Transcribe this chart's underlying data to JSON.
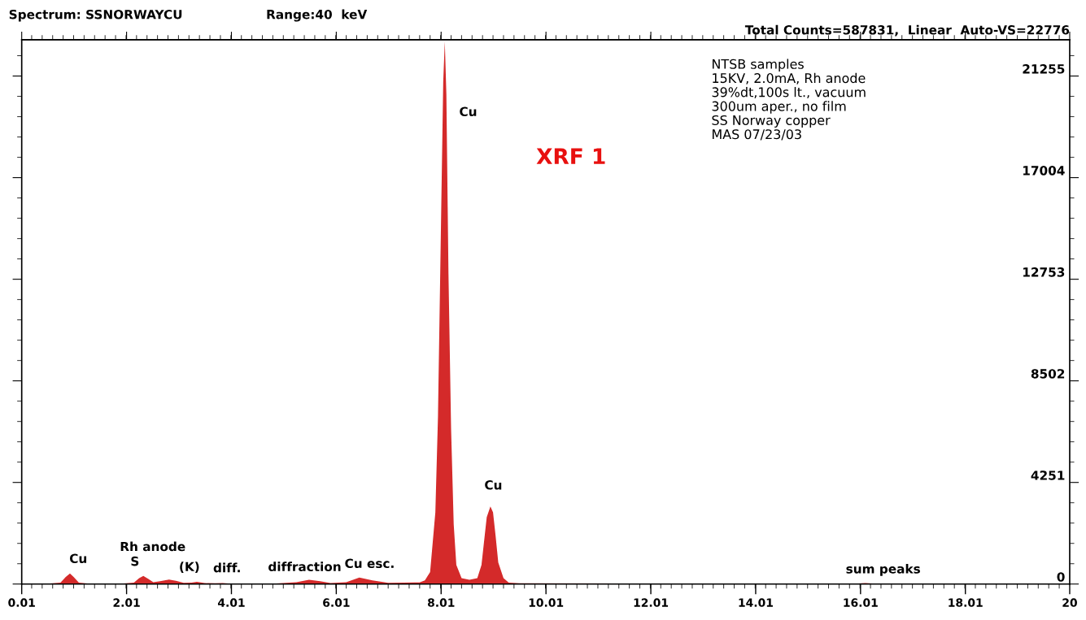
{
  "chart_data": {
    "type": "area",
    "title": "Spectrum: SSNORWAYCU",
    "subtitle": "Range:40  keV",
    "x": [
      0.01,
      0.5,
      0.75,
      0.85,
      0.93,
      1.0,
      1.1,
      1.3,
      1.9,
      2.15,
      2.25,
      2.33,
      2.42,
      2.52,
      2.65,
      2.82,
      2.95,
      3.1,
      3.25,
      3.35,
      3.5,
      3.7,
      3.84,
      4.0,
      4.8,
      5.25,
      5.49,
      5.7,
      5.9,
      6.2,
      6.45,
      6.7,
      7.0,
      7.3,
      7.6,
      7.7,
      7.8,
      7.9,
      7.95,
      8.0,
      8.05,
      8.08,
      8.11,
      8.15,
      8.2,
      8.25,
      8.3,
      8.4,
      8.55,
      8.7,
      8.78,
      8.83,
      8.88,
      8.95,
      9.0,
      9.05,
      9.1,
      9.2,
      9.3,
      9.5,
      12.0,
      15.9,
      16.1,
      16.3,
      20.0
    ],
    "series": [
      {
        "color": "#d42a2a",
        "values": [
          0,
          20,
          60,
          300,
          440,
          300,
          60,
          20,
          20,
          60,
          250,
          340,
          220,
          80,
          120,
          190,
          140,
          50,
          60,
          90,
          40,
          30,
          40,
          20,
          20,
          80,
          180,
          120,
          40,
          80,
          270,
          150,
          50,
          60,
          70,
          150,
          500,
          3000,
          7000,
          14000,
          21000,
          22700,
          20500,
          13000,
          6500,
          2500,
          800,
          250,
          180,
          250,
          800,
          1800,
          2800,
          3250,
          3000,
          2000,
          900,
          250,
          60,
          30,
          20,
          20,
          40,
          20,
          10
        ]
      }
    ],
    "xlim": [
      0.01,
      20
    ],
    "xticks": [
      0.01,
      2.01,
      4.01,
      6.01,
      8.01,
      10.01,
      12.01,
      14.01,
      16.01,
      18.01,
      20
    ],
    "ylim": [
      0,
      22776
    ],
    "yticks": [
      0,
      4251,
      8502,
      12753,
      17004,
      21255
    ],
    "grid": false,
    "legend": false,
    "annotations": [
      "Cu",
      "Rh anode",
      "S",
      "(K)",
      "diff.",
      "diffraction",
      "Cu esc.",
      "Cu",
      "Cu",
      "sum peaks",
      "Total Counts=587831,  Linear  Auto-VS=22776",
      "NTSB samples\n15KV, 2.0mA, Rh anode\n39%dt,100s lt., vacuum\n300um aper., no film\nSS Norway copper\nMAS 07/23/03",
      "XRF 1"
    ]
  }
}
